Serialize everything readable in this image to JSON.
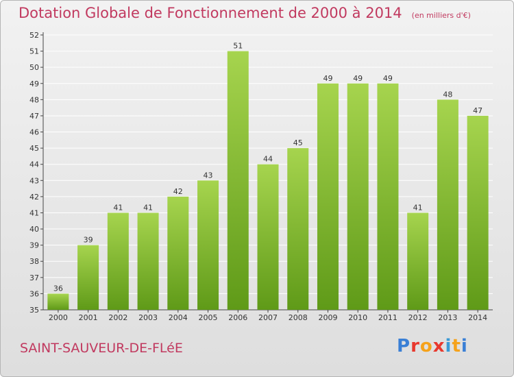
{
  "header": {
    "title": "Dotation Globale de Fonctionnement de 2000 à 2014",
    "unit": "(en milliers d'€)"
  },
  "footer": {
    "commune": "SAINT-SAUVEUR-DE-FLéE",
    "logo": "Proxiti"
  },
  "logo_colors": [
    "#3a7fd5",
    "#e8382d",
    "#f5a21b",
    "#e8382d",
    "#3a9ad5",
    "#f5a21b",
    "#3a7fd5"
  ],
  "colors": {
    "bar_top": "#a6d44e",
    "bar_bottom": "#5f9a18",
    "title": "#c1395f",
    "grid": "#ffffff"
  },
  "chart_data": {
    "type": "bar",
    "title": "Dotation Globale de Fonctionnement de 2000 à 2014",
    "subtitle": "(en milliers d'€)",
    "xlabel": "",
    "ylabel": "",
    "categories": [
      "2000",
      "2001",
      "2002",
      "2003",
      "2004",
      "2005",
      "2006",
      "2007",
      "2008",
      "2009",
      "2010",
      "2011",
      "2012",
      "2013",
      "2014"
    ],
    "values": [
      36,
      39,
      41,
      41,
      42,
      43,
      51,
      44,
      45,
      49,
      49,
      49,
      41,
      48,
      47
    ],
    "ylim": [
      35,
      52
    ],
    "yticks": [
      35,
      36,
      37,
      38,
      39,
      40,
      41,
      42,
      43,
      44,
      45,
      46,
      47,
      48,
      49,
      50,
      51,
      52
    ],
    "grid": true
  }
}
